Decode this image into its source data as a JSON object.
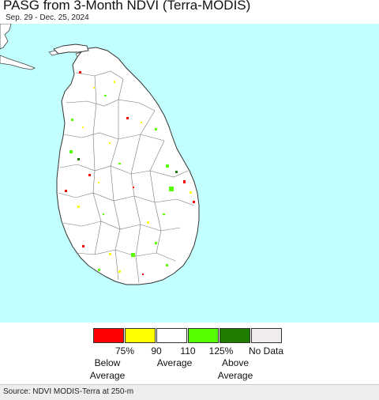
{
  "title": "PASG from 3-Month NDVI (Terra-MODIS)",
  "subtitle": "Sep. 29 - Dec. 25, 2024",
  "map": {
    "region": "Sri Lanka",
    "ocean_color": "#c2ffff",
    "land_color": "#ffffff",
    "border_color": "#555555"
  },
  "legend": {
    "swatches": [
      {
        "color": "#ff0000"
      },
      {
        "color": "#ffff00"
      },
      {
        "color": "#ffffff"
      },
      {
        "color": "#55ff00"
      },
      {
        "color": "#1e7d00"
      },
      {
        "color": "#efebee"
      }
    ],
    "ticks": [
      "75%",
      "90",
      "110",
      "125%"
    ],
    "no_data": "No Data",
    "below_line1": "Below",
    "below_line2": "Average",
    "average": "Average",
    "above_line1": "Above",
    "above_line2": "Average"
  },
  "source": "Source: NDVI MODIS-Terra at 250-m"
}
